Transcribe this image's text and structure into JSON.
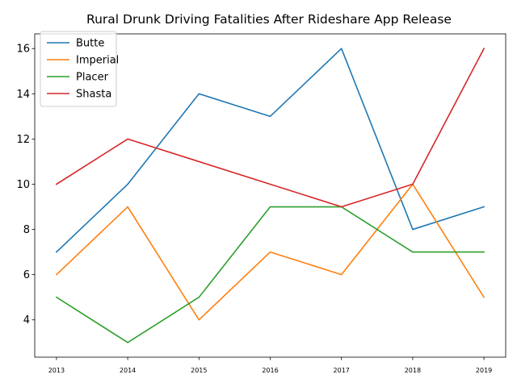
{
  "chart_data": {
    "type": "line",
    "title": "Rural Drunk Driving Fatalities After Rideshare App Release",
    "xlabel": "",
    "ylabel": "",
    "x": [
      "2013",
      "2014",
      "2015",
      "2016",
      "2017",
      "2018",
      "2019"
    ],
    "ylim": [
      2.35,
      16.65
    ],
    "yticks": [
      4,
      6,
      8,
      10,
      12,
      14,
      16
    ],
    "grid": false,
    "legend_position": "top-left",
    "series": [
      {
        "name": "Butte",
        "color": "#1f77b4",
        "values": [
          7,
          10,
          14,
          13,
          16,
          8,
          9
        ]
      },
      {
        "name": "Imperial",
        "color": "#ff7f0e",
        "values": [
          6,
          9,
          4,
          7,
          6,
          10,
          5
        ]
      },
      {
        "name": "Placer",
        "color": "#2ca02c",
        "values": [
          5,
          3,
          5,
          9,
          9,
          7,
          7
        ]
      },
      {
        "name": "Shasta",
        "color": "#d62728",
        "values": [
          10,
          12,
          11,
          10,
          9,
          10,
          16
        ]
      }
    ]
  }
}
